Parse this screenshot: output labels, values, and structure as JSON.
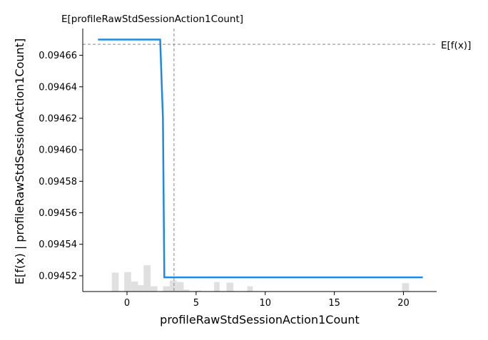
{
  "chart_data": {
    "type": "line",
    "top_label": "E[profileRawStdSessionAction1Count]",
    "xlabel": "profileRawStdSessionAction1Count",
    "ylabel": "E[f(x) | profileRawStdSessionAction1Count]",
    "expected_value_label": "E[f(x)]",
    "xlim": [
      -3.2,
      22.4
    ],
    "ylim": [
      0.09451,
      0.094677
    ],
    "x_ticks": [
      0,
      5,
      10,
      15,
      20
    ],
    "x_tick_labels": [
      "0",
      "5",
      "10",
      "15",
      "20"
    ],
    "y_ticks": [
      0.09452,
      0.09454,
      0.09456,
      0.09458,
      0.0946,
      0.09462,
      0.09464,
      0.09466
    ],
    "y_tick_labels": [
      "0.09452",
      "0.09454",
      "0.09456",
      "0.09458",
      "0.09460",
      "0.09462",
      "0.09464",
      "0.09466"
    ],
    "expected_value": 0.094667,
    "expected_feature_value": 3.4,
    "series": [
      {
        "color": "#1e88e5",
        "x": [
          -2.1,
          2.4,
          2.6,
          2.7,
          21.4
        ],
        "y": [
          0.09467,
          0.09467,
          0.09462,
          0.094519,
          0.094519
        ]
      }
    ],
    "histogram": {
      "color": "#e0e0e0",
      "bins": [
        {
          "x0": -1.1,
          "x1": -0.6,
          "frac": 0.36
        },
        {
          "x0": -0.2,
          "x1": 0.3,
          "frac": 0.37
        },
        {
          "x0": 0.3,
          "x1": 0.8,
          "frac": 0.19
        },
        {
          "x0": 0.8,
          "x1": 1.2,
          "frac": 0.12
        },
        {
          "x0": 1.2,
          "x1": 1.7,
          "frac": 0.5
        },
        {
          "x0": 1.7,
          "x1": 2.2,
          "frac": 0.1
        },
        {
          "x0": 2.6,
          "x1": 3.1,
          "frac": 0.1
        },
        {
          "x0": 3.1,
          "x1": 3.6,
          "frac": 0.21
        },
        {
          "x0": 3.6,
          "x1": 4.1,
          "frac": 0.18
        },
        {
          "x0": 4.1,
          "x1": 4.5,
          "frac": 0.04
        },
        {
          "x0": 5.0,
          "x1": 5.4,
          "frac": 0.02
        },
        {
          "x0": 6.3,
          "x1": 6.7,
          "frac": 0.18
        },
        {
          "x0": 7.2,
          "x1": 7.7,
          "frac": 0.17
        },
        {
          "x0": 8.7,
          "x1": 9.1,
          "frac": 0.1
        },
        {
          "x0": 19.9,
          "x1": 20.4,
          "frac": 0.16
        }
      ]
    }
  }
}
